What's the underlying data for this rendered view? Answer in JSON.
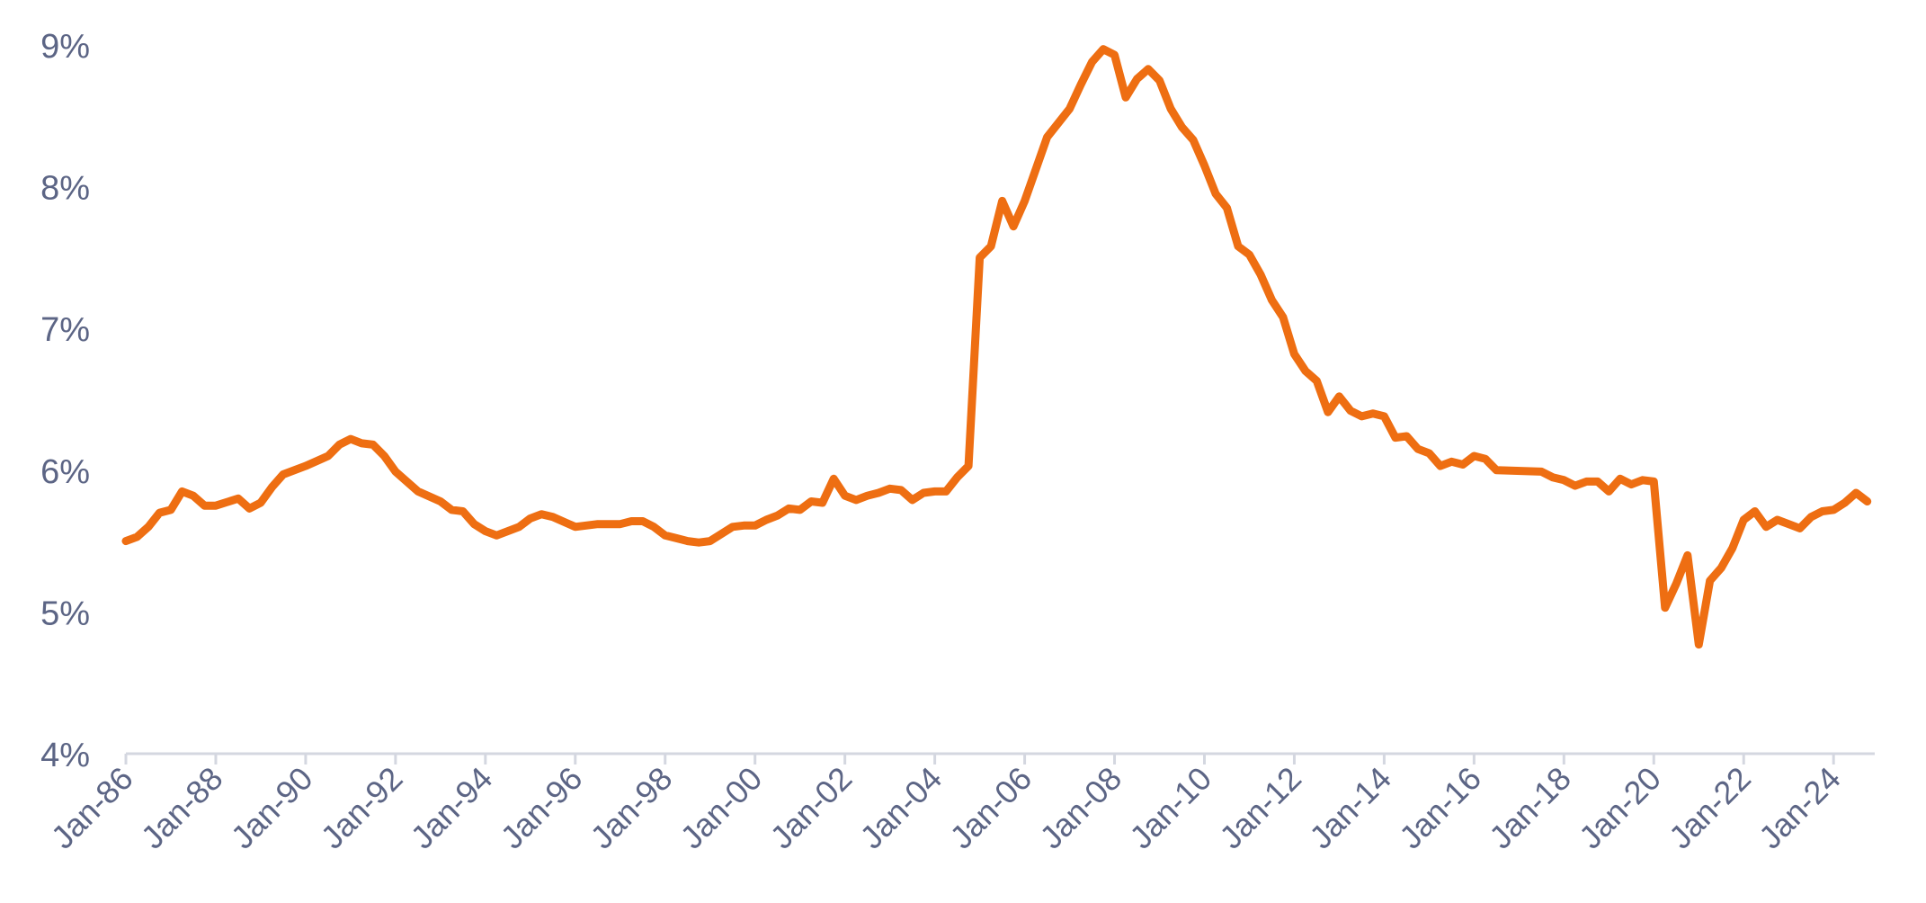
{
  "chart_data": {
    "type": "line",
    "title": "",
    "xlabel": "",
    "ylabel": "",
    "x_range": [
      "1986-01",
      "2024-12"
    ],
    "ylim": [
      4,
      9
    ],
    "y_ticks": [
      "4%",
      "5%",
      "6%",
      "7%",
      "8%",
      "9%"
    ],
    "x_ticks": [
      "Jan-86",
      "Jan-88",
      "Jan-90",
      "Jan-92",
      "Jan-94",
      "Jan-96",
      "Jan-98",
      "Jan-00",
      "Jan-02",
      "Jan-04",
      "Jan-06",
      "Jan-08",
      "Jan-10",
      "Jan-12",
      "Jan-14",
      "Jan-16",
      "Jan-18",
      "Jan-20",
      "Jan-22",
      "Jan-24"
    ],
    "grid": false,
    "legend": "none",
    "line_color": "#ee6e12",
    "axis_color": "#d4d7e0",
    "tick_text_color": "#5c6585",
    "series": [
      {
        "values": [
          [
            "1986-01",
            5.5
          ],
          [
            "1986-04",
            5.53
          ],
          [
            "1986-07",
            5.6
          ],
          [
            "1986-10",
            5.7
          ],
          [
            "1987-01",
            5.72
          ],
          [
            "1987-04",
            5.85
          ],
          [
            "1987-07",
            5.82
          ],
          [
            "1987-10",
            5.75
          ],
          [
            "1988-01",
            5.75
          ],
          [
            "1988-07",
            5.8
          ],
          [
            "1988-10",
            5.73
          ],
          [
            "1989-01",
            5.77
          ],
          [
            "1989-04",
            5.88
          ],
          [
            "1989-07",
            5.97
          ],
          [
            "1990-01",
            6.03
          ],
          [
            "1990-07",
            6.1
          ],
          [
            "1990-10",
            6.18
          ],
          [
            "1991-01",
            6.22
          ],
          [
            "1991-04",
            6.19
          ],
          [
            "1991-07",
            6.18
          ],
          [
            "1991-10",
            6.1
          ],
          [
            "1992-01",
            5.99
          ],
          [
            "1992-04",
            5.92
          ],
          [
            "1992-07",
            5.85
          ],
          [
            "1993-01",
            5.78
          ],
          [
            "1993-04",
            5.72
          ],
          [
            "1993-07",
            5.71
          ],
          [
            "1993-10",
            5.62
          ],
          [
            "1994-01",
            5.57
          ],
          [
            "1994-04",
            5.54
          ],
          [
            "1994-07",
            5.57
          ],
          [
            "1994-10",
            5.6
          ],
          [
            "1995-01",
            5.66
          ],
          [
            "1995-04",
            5.69
          ],
          [
            "1995-07",
            5.67
          ],
          [
            "1996-01",
            5.6
          ],
          [
            "1996-07",
            5.62
          ],
          [
            "1997-01",
            5.62
          ],
          [
            "1997-04",
            5.64
          ],
          [
            "1997-07",
            5.64
          ],
          [
            "1997-10",
            5.6
          ],
          [
            "1998-01",
            5.54
          ],
          [
            "1998-04",
            5.52
          ],
          [
            "1998-07",
            5.5
          ],
          [
            "1998-10",
            5.49
          ],
          [
            "1999-01",
            5.5
          ],
          [
            "1999-04",
            5.55
          ],
          [
            "1999-07",
            5.6
          ],
          [
            "1999-10",
            5.61
          ],
          [
            "2000-01",
            5.61
          ],
          [
            "2000-04",
            5.65
          ],
          [
            "2000-07",
            5.68
          ],
          [
            "2000-10",
            5.73
          ],
          [
            "2001-01",
            5.72
          ],
          [
            "2001-04",
            5.78
          ],
          [
            "2001-07",
            5.77
          ],
          [
            "2001-10",
            5.94
          ],
          [
            "2002-01",
            5.82
          ],
          [
            "2002-04",
            5.79
          ],
          [
            "2002-07",
            5.82
          ],
          [
            "2002-10",
            5.84
          ],
          [
            "2003-01",
            5.87
          ],
          [
            "2003-04",
            5.86
          ],
          [
            "2003-07",
            5.79
          ],
          [
            "2003-10",
            5.84
          ],
          [
            "2004-01",
            5.85
          ],
          [
            "2004-04",
            5.85
          ],
          [
            "2004-07",
            5.95
          ],
          [
            "2004-10",
            6.03
          ],
          [
            "2005-01",
            7.5
          ],
          [
            "2005-04",
            7.58
          ],
          [
            "2005-07",
            7.9
          ],
          [
            "2005-10",
            7.72
          ],
          [
            "2006-01",
            7.9
          ],
          [
            "2006-07",
            8.35
          ],
          [
            "2006-10",
            8.45
          ],
          [
            "2007-01",
            8.55
          ],
          [
            "2007-04",
            8.72
          ],
          [
            "2007-07",
            8.88
          ],
          [
            "2007-10",
            8.97
          ],
          [
            "2008-01",
            8.93
          ],
          [
            "2008-04",
            8.63
          ],
          [
            "2008-07",
            8.76
          ],
          [
            "2008-10",
            8.83
          ],
          [
            "2009-01",
            8.75
          ],
          [
            "2009-04",
            8.55
          ],
          [
            "2009-07",
            8.42
          ],
          [
            "2009-10",
            8.33
          ],
          [
            "2010-01",
            8.15
          ],
          [
            "2010-04",
            7.95
          ],
          [
            "2010-07",
            7.85
          ],
          [
            "2010-10",
            7.58
          ],
          [
            "2011-01",
            7.52
          ],
          [
            "2011-04",
            7.38
          ],
          [
            "2011-07",
            7.2
          ],
          [
            "2011-10",
            7.08
          ],
          [
            "2012-01",
            6.82
          ],
          [
            "2012-04",
            6.7
          ],
          [
            "2012-07",
            6.63
          ],
          [
            "2012-10",
            6.41
          ],
          [
            "2013-01",
            6.52
          ],
          [
            "2013-04",
            6.42
          ],
          [
            "2013-07",
            6.38
          ],
          [
            "2013-10",
            6.4
          ],
          [
            "2014-01",
            6.38
          ],
          [
            "2014-04",
            6.23
          ],
          [
            "2014-07",
            6.24
          ],
          [
            "2014-10",
            6.15
          ],
          [
            "2015-01",
            6.12
          ],
          [
            "2015-04",
            6.03
          ],
          [
            "2015-07",
            6.06
          ],
          [
            "2015-10",
            6.04
          ],
          [
            "2016-01",
            6.1
          ],
          [
            "2016-04",
            6.08
          ],
          [
            "2016-07",
            6.0
          ],
          [
            "2017-07",
            5.99
          ],
          [
            "2017-10",
            5.95
          ],
          [
            "2018-01",
            5.93
          ],
          [
            "2018-04",
            5.89
          ],
          [
            "2018-07",
            5.92
          ],
          [
            "2018-10",
            5.92
          ],
          [
            "2019-01",
            5.85
          ],
          [
            "2019-04",
            5.94
          ],
          [
            "2019-07",
            5.9
          ],
          [
            "2019-10",
            5.93
          ],
          [
            "2020-01",
            5.92
          ],
          [
            "2020-04",
            5.03
          ],
          [
            "2020-07",
            5.2
          ],
          [
            "2020-10",
            5.4
          ],
          [
            "2021-01",
            4.77
          ],
          [
            "2021-04",
            5.22
          ],
          [
            "2021-07",
            5.31
          ],
          [
            "2021-10",
            5.45
          ],
          [
            "2022-01",
            5.65
          ],
          [
            "2022-04",
            5.71
          ],
          [
            "2022-07",
            5.6
          ],
          [
            "2022-10",
            5.65
          ],
          [
            "2023-01",
            5.62
          ],
          [
            "2023-04",
            5.59
          ],
          [
            "2023-07",
            5.67
          ],
          [
            "2023-10",
            5.71
          ],
          [
            "2024-01",
            5.72
          ],
          [
            "2024-04",
            5.77
          ],
          [
            "2024-07",
            5.84
          ],
          [
            "2024-10",
            5.78
          ]
        ]
      }
    ]
  }
}
